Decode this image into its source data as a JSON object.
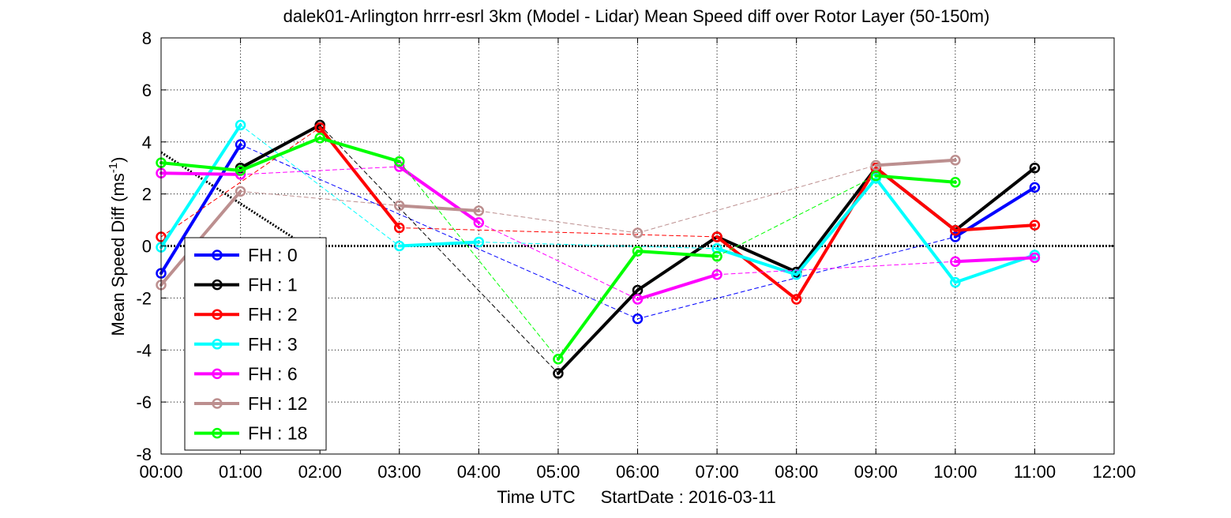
{
  "chart_data": {
    "type": "line",
    "title": "dalek01-Arlington hrrr-esrl 3km (Model - Lidar) Mean Speed diff over Rotor Layer (50-150m)",
    "xlabel": "Time UTC",
    "xlabel_extra": "StartDate : 2016-03-11",
    "ylabel": "Mean Speed Diff (ms",
    "ylabel_sup": "-1",
    "ylabel_end": ")",
    "xlim": [
      0,
      12
    ],
    "ylim": [
      -8,
      8
    ],
    "x_ticks": [
      0,
      1,
      2,
      3,
      4,
      5,
      6,
      7,
      8,
      9,
      10,
      11,
      12
    ],
    "x_tick_labels": [
      "00:00",
      "01:00",
      "02:00",
      "03:00",
      "04:00",
      "05:00",
      "06:00",
      "07:00",
      "08:00",
      "09:00",
      "10:00",
      "11:00",
      "12:00"
    ],
    "y_ticks": [
      -8,
      -6,
      -4,
      -2,
      0,
      2,
      4,
      6,
      8
    ],
    "y_tick_labels": [
      "-8",
      "-6",
      "-4",
      "-2",
      "0",
      "2",
      "4",
      "6",
      "8"
    ],
    "grid": true,
    "legend_position": "bottom-left",
    "series": [
      {
        "name": "FH : 0",
        "color": "#0000ff",
        "x": [
          0,
          1,
          6,
          10,
          11
        ],
        "y": [
          -1.05,
          3.9,
          -2.8,
          0.35,
          2.25
        ]
      },
      {
        "name": "FH : 1",
        "color": "#000000",
        "x": [
          1,
          2,
          5,
          6,
          7,
          8,
          9,
          10,
          11
        ],
        "y": [
          3.0,
          4.65,
          -4.9,
          -1.7,
          0.35,
          -1.0,
          3.0,
          0.6,
          3.0
        ]
      },
      {
        "name": "FH : 2",
        "color": "#ff0000",
        "x": [
          0,
          2,
          3,
          7,
          8,
          9,
          10,
          11
        ],
        "y": [
          0.35,
          4.55,
          0.7,
          0.35,
          -2.05,
          3.0,
          0.6,
          0.8
        ]
      },
      {
        "name": "FH : 3",
        "color": "#00ffff",
        "x": [
          0,
          1,
          3,
          4,
          7,
          8,
          9,
          10,
          11
        ],
        "y": [
          -0.05,
          4.65,
          0.0,
          0.15,
          -0.1,
          -1.1,
          2.6,
          -1.4,
          -0.35
        ]
      },
      {
        "name": "FH : 6",
        "color": "#ff00ff",
        "x": [
          0,
          1,
          3,
          4,
          6,
          7,
          10,
          11
        ],
        "y": [
          2.8,
          2.75,
          3.05,
          0.9,
          -2.05,
          -1.1,
          -0.6,
          -0.45
        ]
      },
      {
        "name": "FH : 12",
        "color": "#bc8f8f",
        "x": [
          0,
          1,
          3,
          4,
          6,
          9,
          10
        ],
        "y": [
          -1.5,
          2.1,
          1.55,
          1.35,
          0.5,
          3.1,
          3.3
        ]
      },
      {
        "name": "FH : 18",
        "color": "#00ff00",
        "x": [
          0,
          1,
          2,
          3,
          5,
          6,
          7,
          9,
          10
        ],
        "y": [
          3.2,
          2.9,
          4.15,
          3.25,
          -4.35,
          -0.2,
          -0.4,
          2.7,
          2.45
        ]
      }
    ],
    "zero_line": {
      "x": [
        0,
        12
      ],
      "y": [
        0,
        0
      ]
    },
    "trend_line": {
      "x": [
        0,
        1.8
      ],
      "y": [
        3.6,
        0.05
      ]
    }
  }
}
